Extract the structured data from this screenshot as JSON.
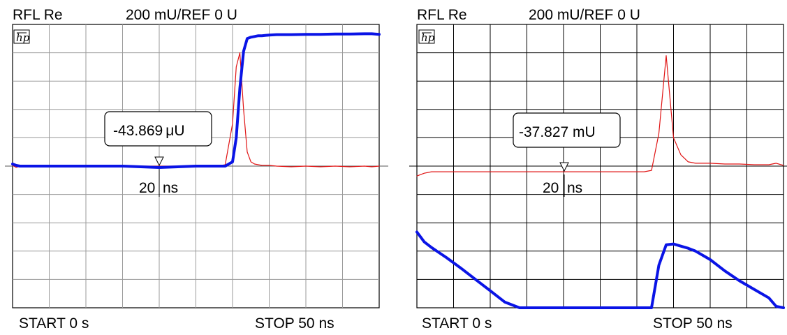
{
  "chart_data": [
    {
      "type": "line",
      "header": {
        "label": "RFL Re",
        "scale": "200 mU/REF 0 U"
      },
      "logo": "hp",
      "x": [
        0,
        0.5,
        1,
        2,
        5,
        10,
        15,
        20,
        25,
        28,
        29,
        30,
        30.5,
        31,
        31.5,
        32,
        32.5,
        33,
        33.5,
        34,
        35,
        36,
        38,
        40,
        42,
        44,
        46,
        48,
        49,
        50
      ],
      "ylim": [
        -1000,
        1000
      ],
      "xlim": [
        0,
        50
      ],
      "grid": {
        "x_divisions": 10,
        "y_divisions": 10
      },
      "series": [
        {
          "color": "#0a14e6",
          "width": 4,
          "y": [
            15,
            5,
            0,
            0,
            0,
            0,
            0,
            -10,
            0,
            0,
            0,
            30,
            200,
            550,
            810,
            900,
            910,
            915,
            920,
            920,
            925,
            928,
            928,
            930,
            930,
            932,
            932,
            934,
            934,
            930
          ]
        },
        {
          "color": "#e01414",
          "width": 1.2,
          "y": [
            5,
            -10,
            0,
            0,
            0,
            0,
            0,
            0,
            0,
            0,
            10,
            300,
            700,
            800,
            400,
            100,
            30,
            15,
            10,
            5,
            5,
            0,
            -5,
            0,
            -5,
            0,
            -5,
            0,
            -5,
            0
          ]
        }
      ],
      "marker": {
        "x": 20,
        "value": "-43.869",
        "unit": "μU",
        "x_label": "20",
        "x_unit": "ns"
      },
      "footer": {
        "start": "START 0 s",
        "stop": "STOP 50 ns"
      }
    },
    {
      "type": "line",
      "header": {
        "label": "RFL Re",
        "scale": "200 mU/REF 0 U"
      },
      "logo": "hp",
      "x": [
        0,
        1,
        2,
        4,
        6,
        8,
        10,
        12,
        14,
        16,
        18,
        20,
        22,
        24,
        26,
        28,
        30,
        31,
        32,
        33,
        34,
        35,
        36,
        37,
        38,
        40,
        42,
        44,
        46,
        48,
        49,
        50
      ],
      "ylim": [
        -1000,
        1000
      ],
      "xlim": [
        0,
        50
      ],
      "grid": {
        "x_divisions": 10,
        "y_divisions": 10
      },
      "series": [
        {
          "color": "#0a14e6",
          "width": 4,
          "y": [
            -465,
            -535,
            -575,
            -645,
            -720,
            -800,
            -880,
            -960,
            -1000,
            -1000,
            -1000,
            -1000,
            -1000,
            -1000,
            -1000,
            -1000,
            -1000,
            -1000,
            -1000,
            -700,
            -555,
            -550,
            -565,
            -580,
            -600,
            -660,
            -740,
            -810,
            -870,
            -930,
            -990,
            -1000
          ]
        },
        {
          "color": "#e01414",
          "width": 1.2,
          "y": [
            -70,
            -50,
            -40,
            -40,
            -40,
            -40,
            -40,
            -40,
            -40,
            -40,
            -40,
            -40,
            -40,
            -40,
            -40,
            -40,
            -40,
            -40,
            -30,
            230,
            780,
            200,
            80,
            30,
            20,
            20,
            15,
            15,
            10,
            10,
            20,
            5
          ]
        }
      ],
      "marker": {
        "x": 20,
        "value": "-37.827 mU",
        "x_label": "20",
        "x_unit": "ns"
      },
      "footer": {
        "start": "START 0 s",
        "stop": "STOP 50 ns"
      }
    }
  ]
}
